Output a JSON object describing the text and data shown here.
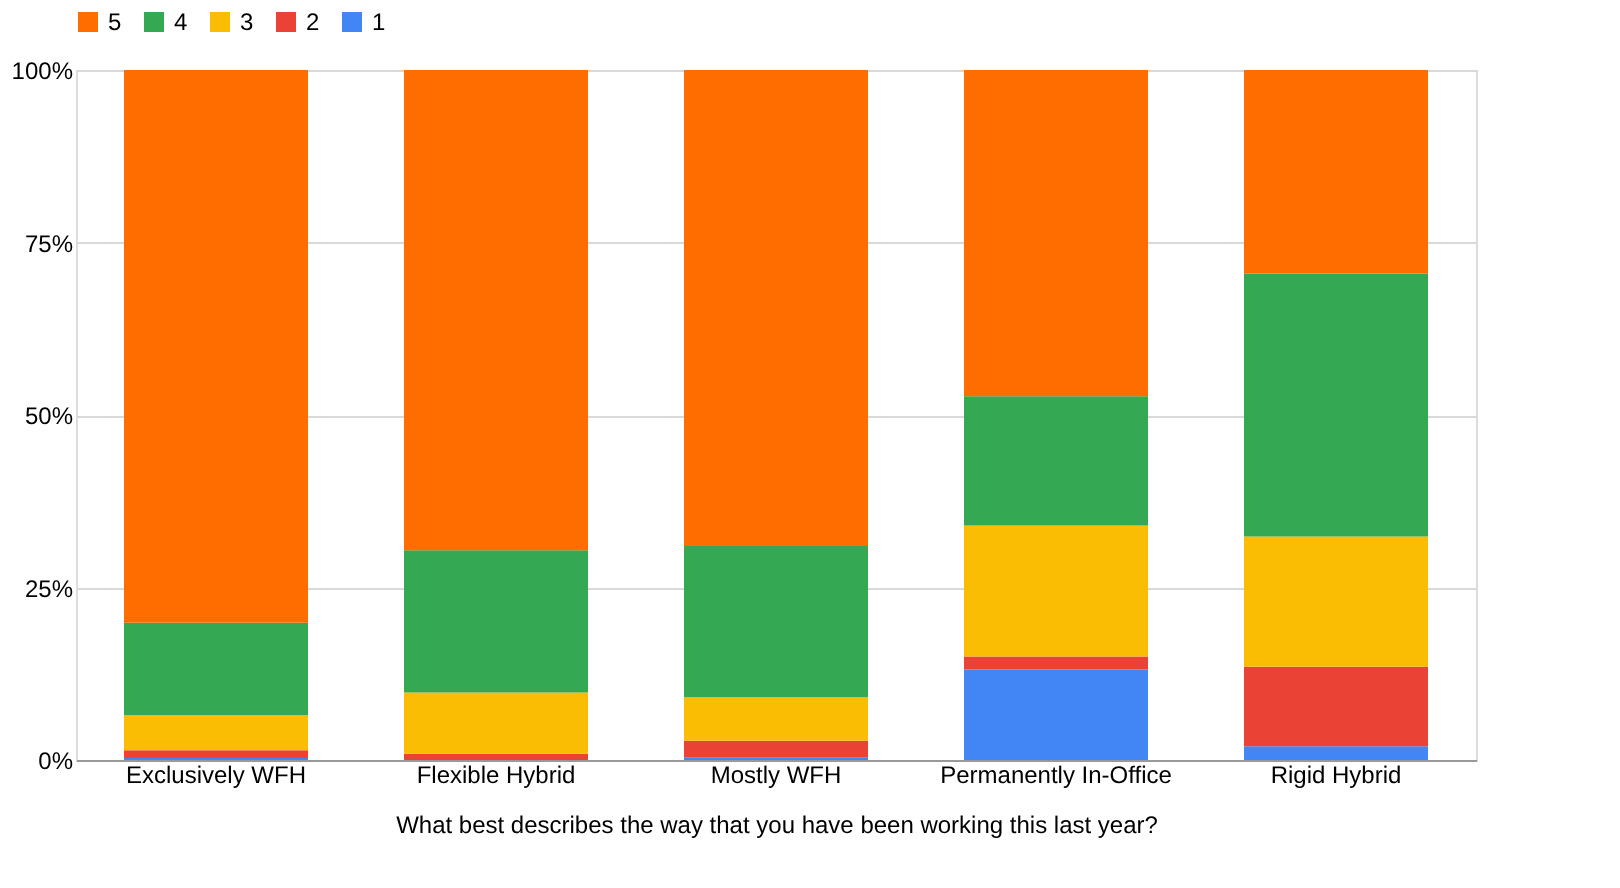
{
  "chart_data": {
    "type": "bar",
    "stacked": true,
    "xlabel": "What best describes the way that you have been working this last year?",
    "categories": [
      "Exclusively WFH",
      "Flexible Hybrid",
      "Mostly WFH",
      "Permanently In-Office",
      "Rigid Hybrid"
    ],
    "series": [
      {
        "name": "1",
        "color": "#4285f4",
        "values": [
          0.3,
          0,
          0.4,
          13.1,
          2
        ]
      },
      {
        "name": "2",
        "color": "#ea4335",
        "values": [
          1.1,
          0.9,
          2.4,
          1.9,
          11.5
        ]
      },
      {
        "name": "3",
        "color": "#fbbc04",
        "values": [
          5.1,
          8.9,
          6.3,
          19,
          18.9
        ]
      },
      {
        "name": "4",
        "color": "#34a853",
        "values": [
          13.4,
          20.6,
          21.9,
          18.7,
          38.1
        ]
      },
      {
        "name": "5",
        "color": "#ff6d01",
        "values": [
          80.1,
          69.6,
          69,
          47.3,
          29.5
        ]
      }
    ],
    "ylim": [
      0,
      100
    ],
    "yticks": [
      {
        "value": 0,
        "label": "0%"
      },
      {
        "value": 25,
        "label": "25%"
      },
      {
        "value": 50,
        "label": "50%"
      },
      {
        "value": 75,
        "label": "75%"
      },
      {
        "value": 100,
        "label": "100%"
      }
    ],
    "grid": "y",
    "legend": "top"
  }
}
